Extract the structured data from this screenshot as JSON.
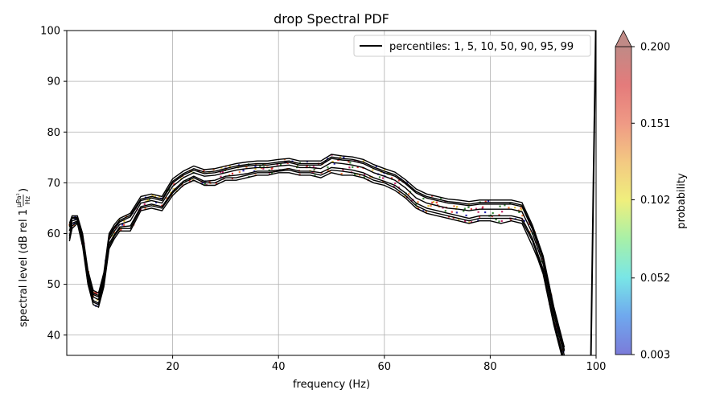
{
  "chart_data": {
    "type": "line",
    "title": "drop Spectral PDF",
    "xlabel": "frequency (Hz)",
    "ylabel": "spectral level (dB rel 1",
    "ylabel_fraction": {
      "numerator": "µPa²",
      "denominator": "Hz"
    },
    "ylabel_suffix": ")",
    "xlim": [
      0,
      100
    ],
    "ylim": [
      36,
      100
    ],
    "xticks": [
      20,
      40,
      60,
      80,
      100
    ],
    "yticks": [
      40,
      50,
      60,
      70,
      80,
      90,
      100
    ],
    "grid": true,
    "legend": {
      "position": "top-right",
      "label": "percentiles: 1, 5, 10, 50, 90, 95, 99"
    },
    "colorbar": {
      "label": "probability",
      "ticks": [
        "0.003",
        "0.052",
        "0.102",
        "0.151",
        "0.200"
      ],
      "tick_values": [
        0.003,
        0.052,
        0.102,
        0.151,
        0.2
      ],
      "range": [
        0.003,
        0.2
      ],
      "extend": "max",
      "colors": [
        "#7b7bd9",
        "#6fa8ee",
        "#79e6e6",
        "#a7f0a8",
        "#efef7d",
        "#f3c982",
        "#ef9a85",
        "#e47b7b",
        "#c08a86"
      ]
    },
    "line_color": "#000000",
    "x": [
      0.5,
      1,
      2,
      3,
      4,
      5,
      6,
      7,
      8,
      9,
      10,
      12,
      14,
      16,
      18,
      20,
      22,
      24,
      26,
      28,
      30,
      32,
      34,
      36,
      38,
      40,
      42,
      44,
      46,
      48,
      50,
      52,
      54,
      56,
      58,
      60,
      62,
      64,
      66,
      68,
      70,
      72,
      74,
      76,
      78,
      80,
      82,
      84,
      86,
      88,
      89,
      90,
      91,
      92,
      93,
      94
    ],
    "series": [
      {
        "values": [
          58.5,
          61.0,
          62.0,
          57.5,
          50.0,
          46.0,
          45.5,
          49.5,
          57.0,
          59.0,
          60.5,
          60.5,
          64.5,
          65.0,
          64.5,
          67.5,
          69.5,
          70.5,
          69.5,
          69.5,
          70.5,
          70.5,
          71.0,
          71.5,
          71.5,
          72.0,
          72.0,
          71.5,
          71.5,
          71.0,
          72.0,
          71.5,
          71.5,
          71.0,
          70.0,
          69.5,
          68.5,
          67.0,
          65.0,
          64.0,
          63.5,
          63.0,
          62.5,
          62.0,
          62.5,
          62.5,
          62.0,
          62.5,
          62.0,
          57.5,
          55.0,
          52.0,
          47.0,
          42.0,
          38.0,
          34.0
        ]
      },
      {
        "values": [
          59.0,
          61.5,
          62.3,
          58.0,
          50.5,
          46.5,
          46.0,
          50.0,
          57.5,
          59.5,
          61.0,
          61.0,
          65.0,
          65.5,
          65.0,
          68.0,
          70.0,
          71.0,
          70.0,
          70.0,
          71.0,
          71.0,
          71.5,
          72.0,
          72.0,
          72.3,
          72.5,
          72.0,
          72.0,
          71.5,
          72.5,
          72.3,
          72.0,
          71.5,
          70.5,
          70.0,
          69.0,
          67.5,
          65.5,
          64.5,
          64.0,
          63.5,
          63.0,
          62.5,
          63.0,
          63.0,
          63.0,
          63.0,
          62.5,
          58.5,
          55.5,
          52.5,
          47.5,
          42.5,
          38.5,
          34.5
        ]
      },
      {
        "values": [
          59.5,
          62.0,
          62.5,
          58.3,
          50.8,
          46.8,
          46.3,
          50.3,
          58.0,
          59.8,
          61.3,
          61.5,
          65.3,
          65.8,
          65.3,
          68.3,
          70.3,
          71.3,
          70.3,
          70.5,
          71.3,
          71.5,
          71.8,
          72.3,
          72.3,
          72.5,
          72.8,
          72.3,
          72.3,
          72.0,
          73.0,
          72.8,
          72.5,
          72.0,
          71.0,
          70.3,
          69.5,
          68.0,
          66.0,
          65.0,
          64.5,
          64.0,
          63.5,
          63.0,
          63.5,
          63.5,
          63.5,
          63.5,
          63.0,
          59.0,
          56.0,
          53.0,
          48.0,
          43.0,
          39.0,
          35.0
        ]
      },
      {
        "values": [
          60.5,
          62.5,
          62.8,
          58.8,
          51.5,
          47.5,
          47.0,
          51.0,
          58.8,
          60.5,
          61.8,
          62.5,
          66.0,
          66.5,
          66.0,
          69.3,
          71.0,
          72.0,
          71.3,
          71.5,
          72.0,
          72.5,
          72.8,
          73.0,
          73.0,
          73.3,
          73.5,
          73.0,
          73.0,
          72.8,
          74.0,
          73.8,
          73.5,
          73.0,
          72.0,
          71.3,
          70.5,
          69.0,
          67.0,
          66.0,
          65.5,
          65.0,
          64.8,
          64.5,
          64.8,
          64.8,
          64.8,
          64.8,
          64.3,
          60.0,
          57.0,
          54.0,
          49.0,
          44.0,
          40.0,
          36.0
        ]
      },
      {
        "values": [
          61.3,
          63.0,
          63.0,
          59.3,
          52.0,
          48.0,
          47.5,
          51.5,
          59.3,
          61.0,
          62.3,
          63.3,
          66.5,
          67.0,
          66.5,
          70.0,
          71.5,
          72.5,
          71.8,
          72.0,
          72.5,
          73.0,
          73.3,
          73.5,
          73.5,
          73.8,
          74.0,
          73.5,
          73.5,
          73.5,
          74.8,
          74.5,
          74.3,
          73.8,
          72.8,
          72.0,
          71.3,
          69.8,
          68.0,
          67.0,
          66.5,
          66.0,
          65.8,
          65.5,
          65.8,
          65.8,
          65.8,
          65.8,
          65.3,
          60.8,
          57.8,
          54.8,
          49.8,
          44.8,
          40.8,
          36.8
        ]
      },
      {
        "values": [
          61.6,
          63.2,
          63.2,
          59.6,
          52.3,
          48.3,
          47.8,
          51.8,
          59.6,
          61.3,
          62.6,
          63.6,
          66.8,
          67.3,
          66.8,
          70.3,
          71.8,
          72.8,
          72.1,
          72.3,
          72.8,
          73.3,
          73.6,
          73.8,
          73.8,
          74.1,
          74.3,
          73.8,
          73.8,
          73.8,
          75.1,
          74.8,
          74.6,
          74.1,
          73.1,
          72.3,
          71.6,
          70.1,
          68.3,
          67.3,
          66.8,
          66.3,
          66.1,
          65.8,
          66.1,
          66.1,
          66.1,
          66.1,
          65.6,
          61.1,
          58.1,
          55.1,
          50.1,
          45.1,
          41.1,
          37.1
        ]
      },
      {
        "values": [
          62.0,
          63.5,
          63.5,
          60.0,
          52.8,
          48.8,
          48.3,
          52.3,
          60.0,
          61.8,
          63.0,
          64.0,
          67.3,
          67.8,
          67.3,
          70.8,
          72.3,
          73.3,
          72.6,
          72.8,
          73.3,
          73.8,
          74.1,
          74.3,
          74.3,
          74.6,
          74.8,
          74.3,
          74.3,
          74.3,
          75.6,
          75.3,
          75.1,
          74.6,
          73.6,
          72.8,
          72.1,
          70.6,
          68.8,
          67.8,
          67.3,
          66.8,
          66.6,
          66.3,
          66.6,
          66.6,
          66.6,
          66.6,
          66.1,
          61.6,
          58.6,
          55.6,
          50.6,
          45.6,
          41.6,
          37.6
        ]
      }
    ],
    "edge_spike": {
      "x": [
        99.0,
        99.5,
        100.0
      ],
      "values": [
        34.0,
        70.0,
        104.0
      ]
    }
  }
}
